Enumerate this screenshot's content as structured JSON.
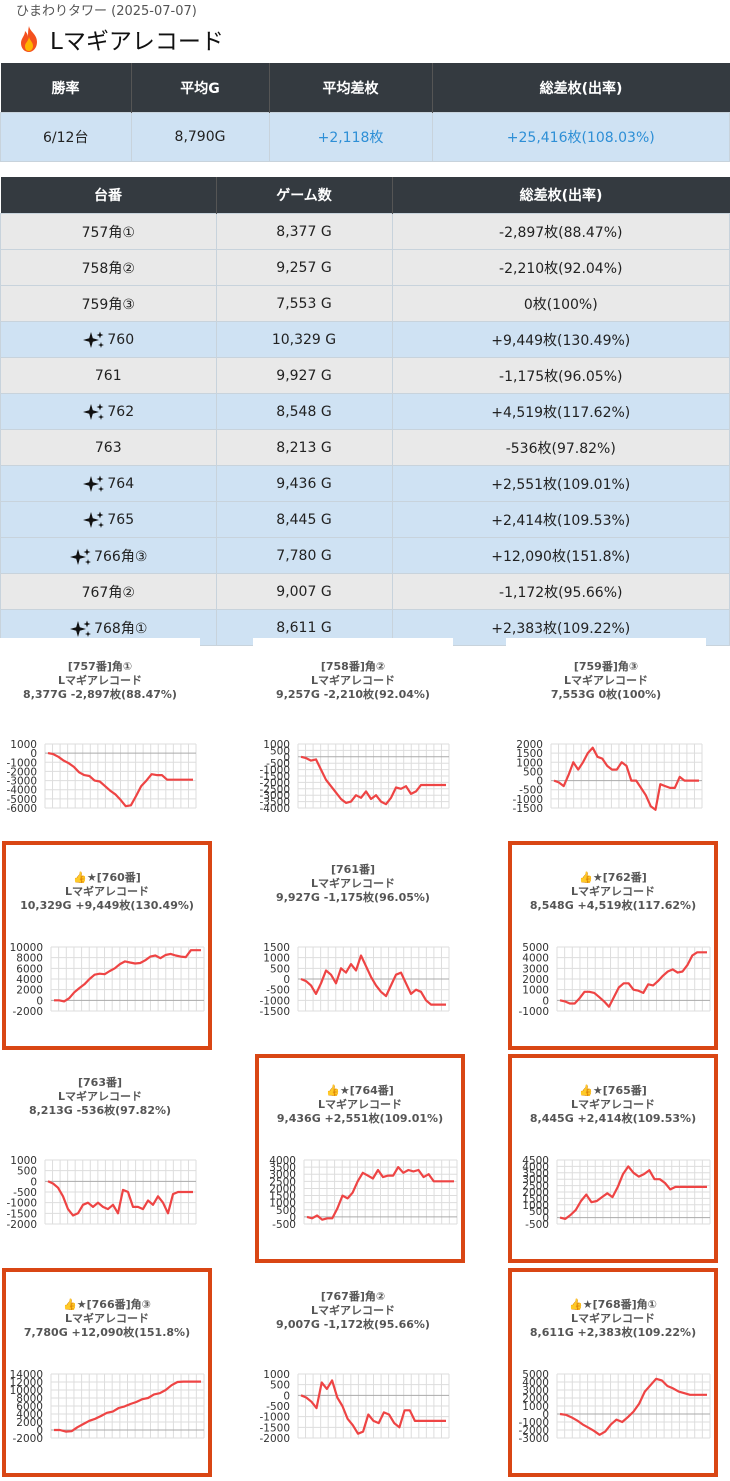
{
  "header": {
    "subtitle": "ひまわりタワー (2025-07-07)",
    "title": "Lマギアレコード",
    "title_icon": "fire-icon"
  },
  "summary": {
    "headers": [
      "勝率",
      "平均G",
      "平均差枚",
      "総差枚(出率)"
    ],
    "values": [
      "6/12台",
      "8,790G",
      "+2,118枚",
      "+25,416枚(108.03%)"
    ]
  },
  "table": {
    "headers": [
      "台番",
      "ゲーム数",
      "総差枚(出率)"
    ],
    "rows": [
      {
        "num": "757角①",
        "games": "8,377 G",
        "diff": "-2,897枚(88.47%)",
        "win": false
      },
      {
        "num": "758角②",
        "games": "9,257 G",
        "diff": "-2,210枚(92.04%)",
        "win": false
      },
      {
        "num": "759角③",
        "games": "7,553 G",
        "diff": "0枚(100%)",
        "win": false
      },
      {
        "num": "760",
        "games": "10,329 G",
        "diff": "+9,449枚(130.49%)",
        "win": true
      },
      {
        "num": "761",
        "games": "9,927 G",
        "diff": "-1,175枚(96.05%)",
        "win": false
      },
      {
        "num": "762",
        "games": "8,548 G",
        "diff": "+4,519枚(117.62%)",
        "win": true
      },
      {
        "num": "763",
        "games": "8,213 G",
        "diff": "-536枚(97.82%)",
        "win": false
      },
      {
        "num": "764",
        "games": "9,436 G",
        "diff": "+2,551枚(109.01%)",
        "win": true
      },
      {
        "num": "765",
        "games": "8,445 G",
        "diff": "+2,414枚(109.53%)",
        "win": true
      },
      {
        "num": "766角③",
        "games": "7,780 G",
        "diff": "+12,090枚(151.8%)",
        "win": true
      },
      {
        "num": "767角②",
        "games": "9,007 G",
        "diff": "-1,172枚(95.66%)",
        "win": false
      },
      {
        "num": "768角①",
        "games": "8,611 G",
        "diff": "+2,383枚(109.22%)",
        "win": true
      }
    ]
  },
  "chart_data": [
    {
      "type": "line",
      "title": [
        "[757番]角①",
        "Lマギアレコード",
        "8,377G -2,897枚(88.47%)"
      ],
      "highlight": false,
      "yticks": [
        1000,
        0,
        -1000,
        -2000,
        -3000,
        -4000,
        -5000,
        -6000
      ],
      "ylim": [
        -6000,
        1000
      ],
      "values": [
        0,
        -100,
        -400,
        -800,
        -1100,
        -1500,
        -2100,
        -2400,
        -2500,
        -3000,
        -3100,
        -3600,
        -4100,
        -4500,
        -5100,
        -5800,
        -5700,
        -4700,
        -3600,
        -3000,
        -2300,
        -2400,
        -2400,
        -2900,
        -2900,
        -2900,
        -2900,
        -2900,
        -2900
      ]
    },
    {
      "type": "line",
      "title": [
        "[758番]角②",
        "Lマギアレコード",
        "9,257G -2,210枚(92.04%)"
      ],
      "highlight": false,
      "yticks": [
        1000,
        500,
        0,
        -500,
        -1000,
        -1500,
        -2000,
        -2500,
        -3000,
        -3500,
        -4000
      ],
      "ylim": [
        -4000,
        1000
      ],
      "values": [
        0,
        -100,
        -300,
        -200,
        -1000,
        -1800,
        -2300,
        -2800,
        -3300,
        -3600,
        -3500,
        -3000,
        -3200,
        -2700,
        -3300,
        -3000,
        -3500,
        -3700,
        -3200,
        -2400,
        -2500,
        -2300,
        -2900,
        -2700,
        -2200,
        -2200,
        -2200,
        -2200,
        -2200,
        -2200
      ]
    },
    {
      "type": "line",
      "title": [
        "[759番]角③",
        "Lマギアレコード",
        "7,553G 0枚(100%)"
      ],
      "highlight": false,
      "yticks": [
        2000,
        1500,
        1000,
        500,
        0,
        -500,
        -1000,
        -1500
      ],
      "ylim": [
        -1500,
        2000
      ],
      "values": [
        0,
        -100,
        -300,
        300,
        1000,
        600,
        1000,
        1500,
        1800,
        1300,
        1200,
        800,
        600,
        600,
        1000,
        800,
        0,
        0,
        -400,
        -800,
        -1400,
        -1600,
        -200,
        -300,
        -400,
        -400,
        200,
        0,
        0,
        0,
        0
      ]
    },
    {
      "type": "line",
      "title": [
        "👍★[760番]",
        "Lマギアレコード",
        "10,329G +9,449枚(130.49%)"
      ],
      "highlight": true,
      "yticks": [
        10000,
        8000,
        6000,
        4000,
        2000,
        0,
        -2000
      ],
      "ylim": [
        -2000,
        10000
      ],
      "values": [
        0,
        0,
        -200,
        400,
        1500,
        2300,
        3000,
        4000,
        4800,
        5000,
        4900,
        5500,
        6000,
        6800,
        7300,
        7100,
        6900,
        7000,
        7500,
        8200,
        8400,
        7900,
        8500,
        8700,
        8400,
        8200,
        8100,
        9400,
        9400,
        9400
      ]
    },
    {
      "type": "line",
      "title": [
        "[761番]",
        "Lマギアレコード",
        "9,927G -1,175枚(96.05%)"
      ],
      "highlight": false,
      "yticks": [
        1500,
        1000,
        500,
        0,
        -500,
        -1000,
        -1500
      ],
      "ylim": [
        -1500,
        1500
      ],
      "values": [
        0,
        -100,
        -300,
        -700,
        -200,
        400,
        200,
        -200,
        500,
        300,
        700,
        400,
        1100,
        600,
        100,
        -300,
        -600,
        -800,
        -300,
        200,
        300,
        -200,
        -700,
        -500,
        -600,
        -1000,
        -1200,
        -1200,
        -1200,
        -1200
      ]
    },
    {
      "type": "line",
      "title": [
        "👍★[762番]",
        "Lマギアレコード",
        "8,548G +4,519枚(117.62%)"
      ],
      "highlight": true,
      "yticks": [
        5000,
        4000,
        3000,
        2000,
        1000,
        0,
        -1000
      ],
      "ylim": [
        -1000,
        5000
      ],
      "values": [
        0,
        -100,
        -300,
        -300,
        200,
        800,
        800,
        700,
        300,
        -100,
        -600,
        300,
        1200,
        1600,
        1600,
        1000,
        900,
        700,
        1500,
        1400,
        1800,
        2300,
        2700,
        2900,
        2600,
        2700,
        3300,
        4200,
        4500,
        4500,
        4500
      ]
    },
    {
      "type": "line",
      "title": [
        "[763番]",
        "Lマギアレコード",
        "8,213G -536枚(97.82%)"
      ],
      "highlight": false,
      "yticks": [
        1000,
        500,
        0,
        -500,
        -1000,
        -1500,
        -2000
      ],
      "ylim": [
        -2000,
        1000
      ],
      "values": [
        0,
        -100,
        -300,
        -700,
        -1300,
        -1600,
        -1500,
        -1100,
        -1000,
        -1200,
        -1000,
        -1200,
        -1300,
        -1100,
        -1500,
        -400,
        -500,
        -1200,
        -1200,
        -1300,
        -900,
        -1100,
        -700,
        -1000,
        -1500,
        -600,
        -500,
        -500,
        -500,
        -500
      ]
    },
    {
      "type": "line",
      "title": [
        "👍★[764番]",
        "Lマギアレコード",
        "9,436G +2,551枚(109.01%)"
      ],
      "highlight": true,
      "yticks": [
        4000,
        3500,
        3000,
        2500,
        2000,
        1500,
        1000,
        500,
        0,
        -500
      ],
      "ylim": [
        -500,
        4000
      ],
      "values": [
        0,
        -100,
        100,
        -200,
        -100,
        -100,
        600,
        1500,
        1300,
        1700,
        2500,
        3100,
        2900,
        2700,
        3300,
        2800,
        2900,
        2900,
        3500,
        3100,
        3300,
        3200,
        3300,
        2800,
        3000,
        2500,
        2500,
        2500,
        2500,
        2500
      ]
    },
    {
      "type": "line",
      "title": [
        "👍★[765番]",
        "Lマギアレコード",
        "8,445G +2,414枚(109.53%)"
      ],
      "highlight": true,
      "yticks": [
        4500,
        4000,
        3500,
        3000,
        2500,
        2000,
        1500,
        1000,
        500,
        0,
        -500
      ],
      "ylim": [
        -500,
        4500
      ],
      "values": [
        0,
        -100,
        200,
        600,
        1300,
        1800,
        1200,
        1300,
        1600,
        1900,
        1600,
        2400,
        3400,
        4000,
        3500,
        3200,
        3400,
        3700,
        3000,
        3000,
        2700,
        2200,
        2400,
        2400,
        2400,
        2400,
        2400,
        2400,
        2400
      ]
    },
    {
      "type": "line",
      "title": [
        "👍★[766番]角③",
        "Lマギアレコード",
        "7,780G +12,090枚(151.8%)"
      ],
      "highlight": true,
      "yticks": [
        14000,
        12000,
        10000,
        8000,
        6000,
        4000,
        2000,
        0,
        -2000
      ],
      "ylim": [
        -2000,
        14000
      ],
      "values": [
        0,
        0,
        -400,
        -300,
        700,
        1500,
        2300,
        2800,
        3500,
        4300,
        4600,
        5500,
        5900,
        6500,
        7000,
        7700,
        8000,
        8900,
        9200,
        10000,
        11200,
        12000,
        12100,
        12100,
        12100,
        12100
      ]
    },
    {
      "type": "line",
      "title": [
        "[767番]角②",
        "Lマギアレコード",
        "9,007G -1,172枚(95.66%)"
      ],
      "highlight": false,
      "yticks": [
        1000,
        500,
        0,
        -500,
        -1000,
        -1500,
        -2000
      ],
      "ylim": [
        -2000,
        1000
      ],
      "values": [
        0,
        -100,
        -300,
        -600,
        600,
        300,
        700,
        -100,
        -500,
        -1100,
        -1400,
        -1800,
        -1700,
        -900,
        -1200,
        -1300,
        -800,
        -900,
        -1300,
        -1500,
        -700,
        -700,
        -1200,
        -1200,
        -1200,
        -1200,
        -1200,
        -1200,
        -1200
      ]
    },
    {
      "type": "line",
      "title": [
        "👍★[768番]角①",
        "Lマギアレコード",
        "8,611G +2,383枚(109.22%)"
      ],
      "highlight": true,
      "yticks": [
        5000,
        4000,
        3000,
        2000,
        1000,
        0,
        -1000,
        -2000,
        -3000
      ],
      "ylim": [
        -3000,
        5000
      ],
      "values": [
        0,
        -100,
        -400,
        -800,
        -1300,
        -1700,
        -2100,
        -2600,
        -2200,
        -1300,
        -700,
        -1000,
        -400,
        300,
        1300,
        2800,
        3600,
        4400,
        4200,
        3500,
        3200,
        2800,
        2600,
        2400,
        2400,
        2400,
        2400
      ]
    }
  ],
  "colors": {
    "line": "#ee4444",
    "header_bg": "#343a40",
    "win_row": "#cfe2f3",
    "lose_row": "#e9e9e9",
    "highlight_border": "#d94614",
    "plus_text": "#2e8fd6"
  },
  "icons": {
    "win_mark": "sparkles-icon"
  }
}
